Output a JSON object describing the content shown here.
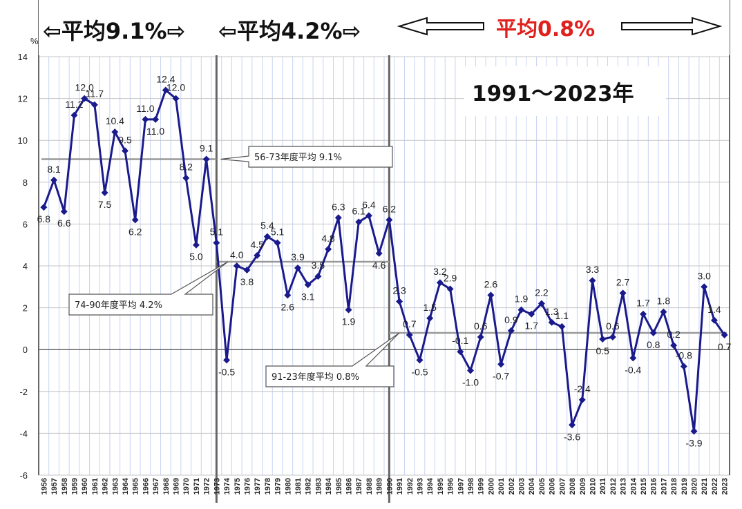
{
  "header": {
    "period1": "⇦平均9.1%⇨",
    "period2": "⇦平均4.2%⇨",
    "period3": "平均0.8%",
    "range_title": "1991～2023年"
  },
  "colors": {
    "line": "#1a1a8c",
    "grid_v": "#c7d3f2",
    "grid_h": "#c4c4c4",
    "accent": "#e0201c",
    "avg_line": "#999999"
  },
  "chart_data": {
    "type": "line",
    "title": "",
    "xlabel": "",
    "ylabel": "%",
    "ylim": [
      -6,
      14
    ],
    "yticks": [
      -6,
      -4,
      -2,
      0,
      2,
      4,
      6,
      8,
      10,
      12,
      14
    ],
    "grid": true,
    "x": [
      1956,
      1957,
      1958,
      1959,
      1960,
      1961,
      1962,
      1963,
      1964,
      1965,
      1966,
      1967,
      1968,
      1969,
      1970,
      1971,
      1972,
      1973,
      1974,
      1975,
      1976,
      1977,
      1978,
      1979,
      1980,
      1981,
      1982,
      1983,
      1984,
      1985,
      1986,
      1987,
      1988,
      1989,
      1990,
      1991,
      1992,
      1993,
      1994,
      1995,
      1996,
      1997,
      1998,
      1999,
      2000,
      2001,
      2002,
      2003,
      2004,
      2005,
      2006,
      2007,
      2008,
      2009,
      2010,
      2011,
      2012,
      2013,
      2014,
      2015,
      2016,
      2017,
      2018,
      2019,
      2020,
      2021,
      2022,
      2023
    ],
    "values": [
      6.8,
      8.1,
      6.6,
      11.2,
      12.0,
      11.7,
      7.5,
      10.4,
      9.5,
      6.2,
      11.0,
      11.0,
      12.4,
      12.0,
      8.2,
      5.0,
      9.1,
      5.1,
      -0.5,
      4.0,
      3.8,
      4.5,
      5.4,
      5.1,
      2.6,
      3.9,
      3.1,
      3.5,
      4.8,
      6.3,
      1.9,
      6.1,
      6.4,
      4.6,
      6.2,
      2.3,
      0.7,
      -0.5,
      1.5,
      3.2,
      2.9,
      -0.1,
      -1.0,
      0.6,
      2.6,
      -0.7,
      0.9,
      1.9,
      1.7,
      2.2,
      1.3,
      1.1,
      -3.6,
      -2.4,
      3.3,
      0.5,
      0.6,
      2.7,
      -0.4,
      1.7,
      0.8,
      1.8,
      0.2,
      -0.8,
      -3.9,
      3.0,
      1.4,
      0.7
    ],
    "data_labels": [
      {
        "text": "6.8"
      },
      {
        "text": "8.1"
      },
      {
        "text": "6.6"
      },
      {
        "text": "11.2"
      },
      {
        "text": "12.0"
      },
      {
        "text": "11.7"
      },
      {
        "text": "7.5"
      },
      {
        "text": "10.4"
      },
      {
        "text": "9.5"
      },
      {
        "text": "6.2"
      },
      {
        "text": "11.0"
      },
      {
        "text": "11.0"
      },
      {
        "text": "12.4"
      },
      {
        "text": "12.0"
      },
      {
        "text": "8.2"
      },
      {
        "text": "5.0"
      },
      {
        "text": "9.1"
      },
      {
        "text": "5.1"
      },
      {
        "text": "-0.5"
      },
      {
        "text": "4.0"
      },
      {
        "text": "3.8"
      },
      {
        "text": "4.5"
      },
      {
        "text": "5.4"
      },
      {
        "text": "5.1"
      },
      {
        "text": "2.6"
      },
      {
        "text": "3.9"
      },
      {
        "text": "3.1"
      },
      {
        "text": "3.5"
      },
      {
        "text": "4.8"
      },
      {
        "text": "6.3"
      },
      {
        "text": "1.9"
      },
      {
        "text": "6.1"
      },
      {
        "text": "6.4"
      },
      {
        "text": "4.6"
      },
      {
        "text": "6.2"
      },
      {
        "text": "2.3"
      },
      {
        "text": "0.7"
      },
      {
        "text": "-0.5"
      },
      {
        "text": "1.5"
      },
      {
        "text": "3.2"
      },
      {
        "text": "2.9"
      },
      {
        "text": "-0.1"
      },
      {
        "text": "-1.0"
      },
      {
        "text": "0.6"
      },
      {
        "text": "2.6"
      },
      {
        "text": "-0.7"
      },
      {
        "text": "0.9"
      },
      {
        "text": "1.9"
      },
      {
        "text": "1.7"
      },
      {
        "text": "2.2"
      },
      {
        "text": "1.3"
      },
      {
        "text": "1.1"
      },
      {
        "text": "-3.6"
      },
      {
        "text": "-2.4"
      },
      {
        "text": "3.3"
      },
      {
        "text": "0.5"
      },
      {
        "text": "0.6"
      },
      {
        "text": "2.7"
      },
      {
        "text": "-0.4"
      },
      {
        "text": "1.7"
      },
      {
        "text": "0.8"
      },
      {
        "text": "1.8"
      },
      {
        "text": "0.2"
      },
      {
        "text": "-0.8"
      },
      {
        "text": "-3.9"
      },
      {
        "text": "3.0"
      },
      {
        "text": "1.4"
      },
      {
        "text": "0.7"
      }
    ],
    "averages": [
      {
        "from": 1956,
        "to": 1973,
        "value": 9.1,
        "label": "56-73年度平均 9.1%"
      },
      {
        "from": 1974,
        "to": 1990,
        "value": 4.2,
        "label": "74-90年度平均 4.2%"
      },
      {
        "from": 1991,
        "to": 2023,
        "value": 0.8,
        "label": "91-23年度平均 0.8%"
      }
    ],
    "period_dividers": [
      1973,
      1990
    ]
  }
}
